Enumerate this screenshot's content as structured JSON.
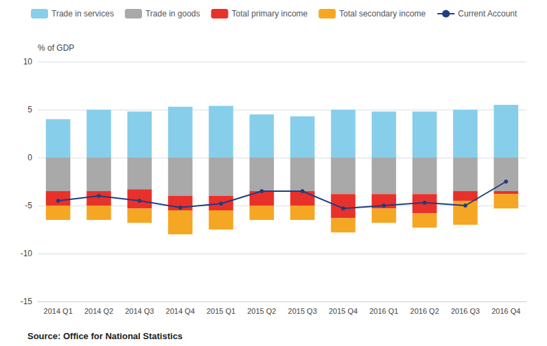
{
  "chart_data": {
    "type": "bar",
    "stacked": true,
    "categories": [
      "2014 Q1",
      "2014 Q2",
      "2014 Q3",
      "2014 Q4",
      "2015 Q1",
      "2015 Q2",
      "2015 Q3",
      "2015 Q4",
      "2016 Q1",
      "2016 Q2",
      "2016 Q3",
      "2016 Q4"
    ],
    "series": [
      {
        "name": "Trade in services",
        "type": "bar",
        "color": "#87CEEB",
        "values": [
          4.0,
          5.0,
          4.8,
          5.3,
          5.4,
          4.5,
          4.3,
          5.0,
          4.8,
          4.8,
          5.0,
          5.5
        ]
      },
      {
        "name": "Trade in goods",
        "type": "bar",
        "color": "#A9A9A9",
        "values": [
          -3.5,
          -3.5,
          -3.3,
          -4.0,
          -4.0,
          -3.5,
          -3.5,
          -3.8,
          -3.8,
          -3.8,
          -3.5,
          -3.5
        ]
      },
      {
        "name": "Total primary income",
        "type": "bar",
        "color": "#E8312A",
        "values": [
          -1.5,
          -1.5,
          -2.0,
          -1.5,
          -1.5,
          -1.5,
          -1.5,
          -2.5,
          -1.5,
          -2.0,
          -1.0,
          -0.3
        ]
      },
      {
        "name": "Total secondary income",
        "type": "bar",
        "color": "#F5A623",
        "values": [
          -1.5,
          -1.5,
          -1.5,
          -2.5,
          -2.0,
          -1.5,
          -1.5,
          -1.5,
          -1.5,
          -1.5,
          -2.5,
          -1.5
        ]
      },
      {
        "name": "Current Account",
        "type": "line",
        "color": "#1f3d7f",
        "marker": "circle",
        "line_style": "solid",
        "values": [
          -4.5,
          -4.0,
          -4.5,
          -5.2,
          -4.8,
          -3.5,
          -3.5,
          -5.3,
          -5.0,
          -4.7,
          -5.0,
          -2.5
        ]
      }
    ],
    "ylabel": "% of GDP",
    "ylim": [
      -15,
      10
    ],
    "yticks": [
      -15,
      -10,
      -5,
      0,
      5,
      10
    ],
    "grid": true,
    "legend": "top",
    "annotations": [
      "Source: Office for National Statistics"
    ]
  }
}
